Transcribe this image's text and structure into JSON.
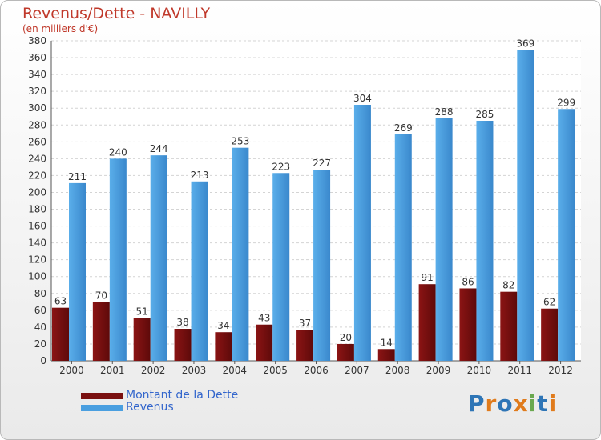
{
  "header": {
    "title": "Revenus/Dette - NAVILLY",
    "subtitle": "(en milliers d'€)"
  },
  "legend": {
    "items": [
      {
        "label": "Montant de la Dette",
        "color": "#7a1010"
      },
      {
        "label": "Revenus",
        "color": "#4a9fe0"
      }
    ]
  },
  "logo": {
    "letters": [
      {
        "char": "P",
        "color": "#2e75b6"
      },
      {
        "char": "r",
        "color": "#e07b1c"
      },
      {
        "char": "o",
        "color": "#2e75b6"
      },
      {
        "char": "x",
        "color": "#e07b1c"
      },
      {
        "char": "i",
        "color": "#6aa84f"
      },
      {
        "char": "t",
        "color": "#2e75b6"
      },
      {
        "char": "i",
        "color": "#e07b1c"
      }
    ]
  },
  "chart_data": {
    "type": "bar",
    "title": "Revenus/Dette - NAVILLY",
    "subtitle": "(en milliers d'€)",
    "categories": [
      "2000",
      "2001",
      "2002",
      "2003",
      "2004",
      "2005",
      "2006",
      "2007",
      "2008",
      "2009",
      "2010",
      "2011",
      "2012"
    ],
    "series": [
      {
        "name": "Montant de la Dette",
        "color": "#7a1010",
        "values": [
          63,
          70,
          51,
          38,
          34,
          43,
          37,
          20,
          14,
          91,
          86,
          82,
          62
        ]
      },
      {
        "name": "Revenus",
        "color": "#4a9fe0",
        "values": [
          211,
          240,
          244,
          213,
          253,
          223,
          227,
          304,
          269,
          288,
          285,
          369,
          299
        ]
      }
    ],
    "ylim": [
      0,
      380
    ],
    "yticks": [
      0,
      20,
      40,
      60,
      80,
      100,
      120,
      140,
      160,
      180,
      200,
      220,
      240,
      260,
      280,
      300,
      320,
      340,
      360,
      380
    ],
    "grid": true,
    "legend_position": "bottom-left"
  }
}
